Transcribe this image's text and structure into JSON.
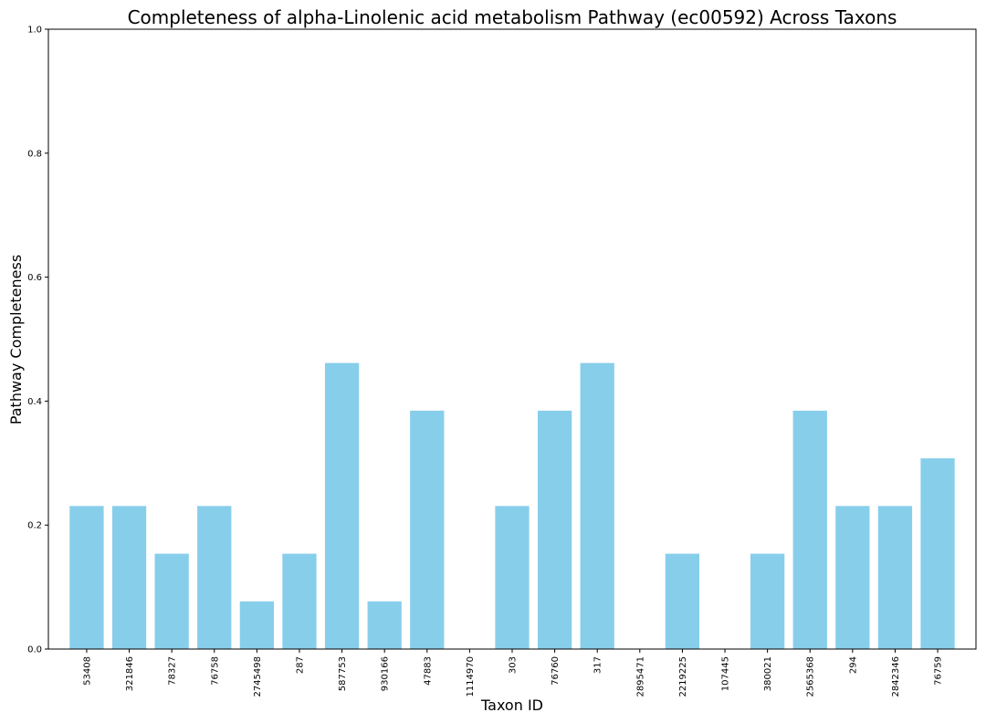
{
  "chart_data": {
    "type": "bar",
    "title": "Completeness of alpha-Linolenic acid metabolism Pathway (ec00592) Across Taxons",
    "xlabel": "Taxon ID",
    "ylabel": "Pathway Completeness",
    "ylim": [
      0,
      1
    ],
    "yticks": [
      "0.0",
      "0.2",
      "0.4",
      "0.6",
      "0.8",
      "1.0"
    ],
    "bar_color": "#87ceeb",
    "grid": false,
    "categories": [
      "53408",
      "321846",
      "78327",
      "76758",
      "2745498",
      "287",
      "587753",
      "930166",
      "47883",
      "1114970",
      "303",
      "76760",
      "317",
      "2895471",
      "2219225",
      "107445",
      "380021",
      "2565368",
      "294",
      "2842346",
      "76759"
    ],
    "values": [
      0.2308,
      0.2308,
      0.1538,
      0.2308,
      0.0769,
      0.1538,
      0.4615,
      0.0769,
      0.3846,
      0.0,
      0.2308,
      0.3846,
      0.4615,
      0.0,
      0.1538,
      0.0,
      0.1538,
      0.3846,
      0.2308,
      0.2308,
      0.3077
    ]
  }
}
